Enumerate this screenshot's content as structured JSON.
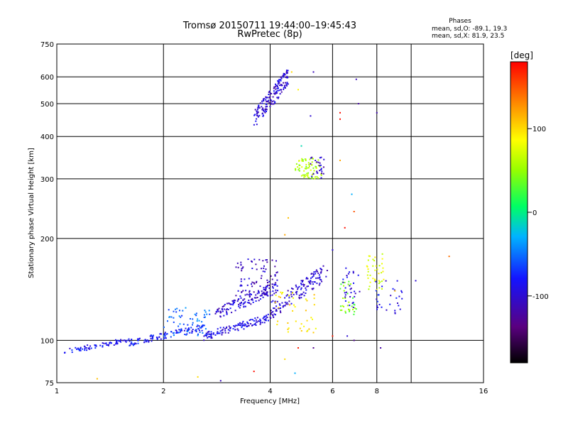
{
  "chart_data": {
    "type": "scatter",
    "title": "Tromsø 20150711 19:44:00–19:45:43",
    "subtitle": "RwPretec (8p)",
    "xlabel": "Frequency [MHz]",
    "ylabel": "Stationary phase Virtual Height [km]",
    "x_scale": "log2",
    "y_scale": "log",
    "xlim": [
      1,
      16
    ],
    "ylim": [
      75,
      750
    ],
    "x_ticks": [
      1,
      2,
      4,
      6,
      8,
      10,
      16
    ],
    "x_tick_labels": [
      "1",
      "2",
      "4",
      "6",
      "8",
      "",
      "16"
    ],
    "y_ticks": [
      75,
      100,
      200,
      300,
      400,
      500,
      600,
      750
    ],
    "y_tick_labels": [
      "75",
      "100",
      "200",
      "300",
      "400",
      "500",
      "600",
      "750"
    ],
    "grid": true,
    "info_box": {
      "title": "Phases",
      "line1": "mean, sd,O: -89.1, 19.3",
      "line2": "mean, sd,X: 81.9, 23.5"
    },
    "colorbar": {
      "label": "[deg]",
      "range": [
        -180,
        180
      ],
      "ticks": [
        100,
        0,
        -100
      ],
      "tick_labels": [
        "100",
        "0",
        "-100"
      ],
      "colormap": "rainbow"
    },
    "clusters": [
      {
        "fmin": 1.05,
        "fmax": 1.6,
        "hmin": 91,
        "hmax": 102,
        "phase": -85,
        "n": 70,
        "trend": "rising"
      },
      {
        "fmin": 1.6,
        "fmax": 2.6,
        "hmin": 96,
        "hmax": 112,
        "phase": -80,
        "n": 110,
        "trend": "rising"
      },
      {
        "fmin": 2.0,
        "fmax": 2.7,
        "hmin": 103,
        "hmax": 125,
        "phase": -55,
        "n": 60,
        "trend": "flat"
      },
      {
        "fmin": 2.6,
        "fmax": 4.0,
        "hmin": 100,
        "hmax": 120,
        "phase": -90,
        "n": 120,
        "trend": "rising"
      },
      {
        "fmin": 2.8,
        "fmax": 4.2,
        "hmin": 115,
        "hmax": 150,
        "phase": -100,
        "n": 130,
        "trend": "rising"
      },
      {
        "fmin": 3.2,
        "fmax": 4.2,
        "hmin": 135,
        "hmax": 175,
        "phase": -105,
        "n": 90,
        "trend": "flat"
      },
      {
        "fmin": 4.0,
        "fmax": 5.8,
        "hmin": 115,
        "hmax": 170,
        "phase": -100,
        "n": 140,
        "trend": "rising"
      },
      {
        "fmin": 4.1,
        "fmax": 5.4,
        "hmin": 105,
        "hmax": 140,
        "phase": 95,
        "n": 40,
        "trend": "flat"
      },
      {
        "fmin": 3.6,
        "fmax": 4.5,
        "hmin": 420,
        "hmax": 640,
        "phase": -100,
        "n": 160,
        "trend": "rising"
      },
      {
        "fmin": 4.7,
        "fmax": 5.6,
        "hmin": 300,
        "hmax": 345,
        "phase": 60,
        "n": 70,
        "trend": "flat"
      },
      {
        "fmin": 5.2,
        "fmax": 5.7,
        "hmin": 300,
        "hmax": 350,
        "phase": -105,
        "n": 25,
        "trend": "flat"
      },
      {
        "fmin": 6.3,
        "fmax": 7.0,
        "hmin": 118,
        "hmax": 150,
        "phase": 40,
        "n": 35,
        "trend": "flat"
      },
      {
        "fmin": 6.4,
        "fmax": 7.2,
        "hmin": 125,
        "hmax": 165,
        "phase": -95,
        "n": 30,
        "trend": "flat"
      },
      {
        "fmin": 7.5,
        "fmax": 8.4,
        "hmin": 140,
        "hmax": 180,
        "phase": 75,
        "n": 40,
        "trend": "flat"
      },
      {
        "fmin": 7.8,
        "fmax": 9.5,
        "hmin": 120,
        "hmax": 150,
        "phase": -90,
        "n": 30,
        "trend": "flat"
      }
    ],
    "sparse_points": [
      {
        "x": 4.6,
        "y": 620,
        "phase": 100
      },
      {
        "x": 5.3,
        "y": 620,
        "phase": -110
      },
      {
        "x": 4.8,
        "y": 550,
        "phase": 90
      },
      {
        "x": 5.2,
        "y": 460,
        "phase": -100
      },
      {
        "x": 4.9,
        "y": 375,
        "phase": -10
      },
      {
        "x": 6.3,
        "y": 470,
        "phase": 175
      },
      {
        "x": 6.3,
        "y": 450,
        "phase": 175
      },
      {
        "x": 6.3,
        "y": 340,
        "phase": 120
      },
      {
        "x": 7.0,
        "y": 590,
        "phase": -110
      },
      {
        "x": 7.1,
        "y": 500,
        "phase": -120
      },
      {
        "x": 8.0,
        "y": 470,
        "phase": -115
      },
      {
        "x": 6.8,
        "y": 270,
        "phase": -30
      },
      {
        "x": 6.5,
        "y": 215,
        "phase": 175
      },
      {
        "x": 6.9,
        "y": 240,
        "phase": 150
      },
      {
        "x": 4.5,
        "y": 230,
        "phase": 110
      },
      {
        "x": 4.4,
        "y": 205,
        "phase": 120
      },
      {
        "x": 6.0,
        "y": 103,
        "phase": 170
      },
      {
        "x": 6.6,
        "y": 103,
        "phase": -100
      },
      {
        "x": 6.9,
        "y": 100,
        "phase": -130
      },
      {
        "x": 8.2,
        "y": 95,
        "phase": -120
      },
      {
        "x": 5.3,
        "y": 95,
        "phase": -130
      },
      {
        "x": 4.8,
        "y": 95,
        "phase": 170
      },
      {
        "x": 4.4,
        "y": 88,
        "phase": 100
      },
      {
        "x": 4.7,
        "y": 80,
        "phase": -30
      },
      {
        "x": 3.6,
        "y": 81,
        "phase": 175
      },
      {
        "x": 2.5,
        "y": 78,
        "phase": 100
      },
      {
        "x": 2.9,
        "y": 76,
        "phase": -110
      },
      {
        "x": 1.3,
        "y": 77,
        "phase": 110
      },
      {
        "x": 10.3,
        "y": 150,
        "phase": -100
      },
      {
        "x": 12.8,
        "y": 177,
        "phase": 140
      },
      {
        "x": 9.0,
        "y": 140,
        "phase": 110
      },
      {
        "x": 6.0,
        "y": 185,
        "phase": -100
      }
    ]
  }
}
